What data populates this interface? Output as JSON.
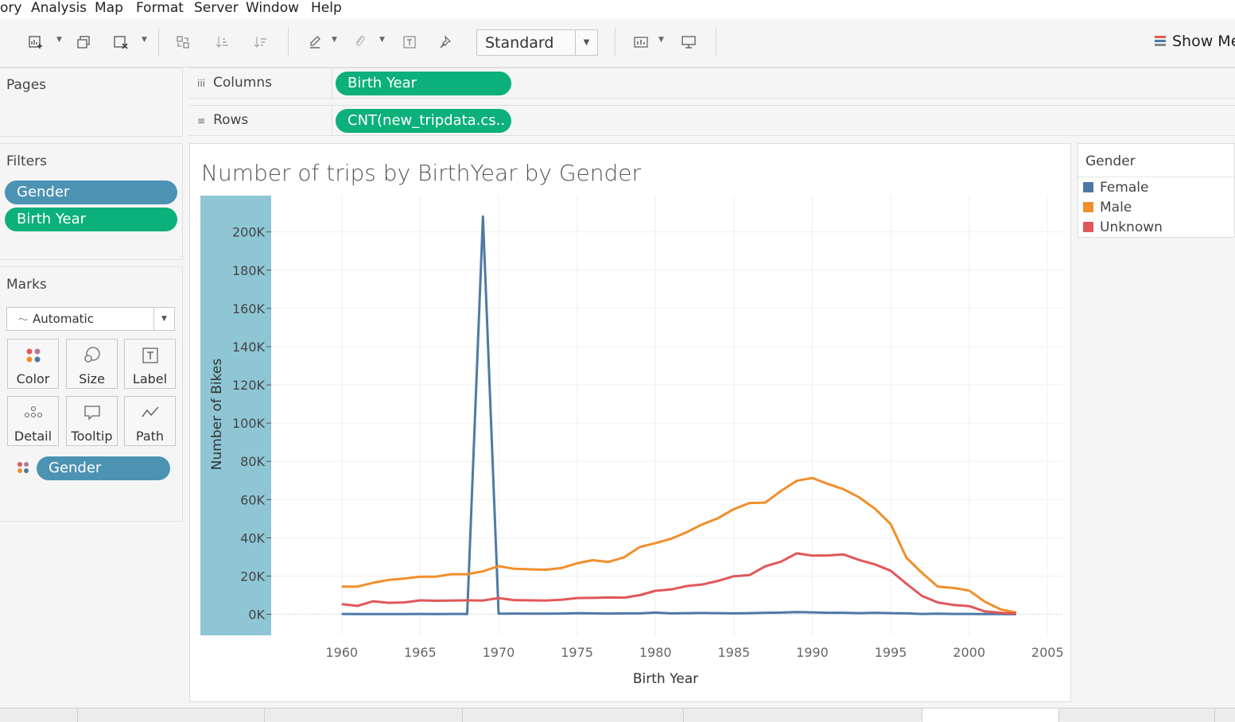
{
  "menu": [
    "ory",
    "Analysis",
    "Map",
    "Format",
    "Server",
    "Window",
    "Help"
  ],
  "toolbar": {
    "fit_select": "Standard",
    "show_me": "Show Me"
  },
  "pages_panel": {
    "title": "Pages"
  },
  "filters_panel": {
    "title": "Filters",
    "pills": [
      "Gender",
      "Birth Year"
    ]
  },
  "marks_panel": {
    "title": "Marks",
    "mark_type": "Automatic",
    "cards": [
      "Color",
      "Size",
      "Label",
      "Detail",
      "Tooltip",
      "Path"
    ],
    "pill": "Gender"
  },
  "shelves": {
    "columns_label": "Columns",
    "columns_pill": "Birth Year",
    "rows_label": "Rows",
    "rows_pill": "CNT(new_tripdata.cs.."
  },
  "colors": {
    "Female": "#4e79a7",
    "Male": "#f28e2b",
    "Unknown": "#e15759",
    "axis_band": "#8ec6d5",
    "pill_blue": "#4c93b3",
    "pill_green": "#0bb07b"
  },
  "legend": {
    "title": "Gender",
    "items": [
      "Female",
      "Male",
      "Unknown"
    ]
  },
  "chart_data": {
    "type": "line",
    "title": "Number of trips by BirthYear by Gender",
    "xlabel": "Birth Year",
    "ylabel": "Number of Bikes",
    "xlim": [
      1955.5,
      2006
    ],
    "ylim": [
      -11000,
      219000
    ],
    "x_ticks": [
      1960,
      1965,
      1970,
      1975,
      1980,
      1985,
      1990,
      1995,
      2000,
      2005
    ],
    "y_ticks": [
      0,
      20000,
      40000,
      60000,
      80000,
      100000,
      120000,
      140000,
      160000,
      180000,
      200000
    ],
    "y_tick_labels": [
      "0K",
      "20K",
      "40K",
      "60K",
      "80K",
      "100K",
      "120K",
      "140K",
      "160K",
      "180K",
      "200K"
    ],
    "grid": true,
    "legend_position": "right",
    "x": [
      1960,
      1961,
      1962,
      1963,
      1964,
      1965,
      1966,
      1967,
      1968,
      1969,
      1970,
      1971,
      1972,
      1973,
      1974,
      1975,
      1976,
      1977,
      1978,
      1979,
      1980,
      1981,
      1982,
      1983,
      1984,
      1985,
      1986,
      1987,
      1988,
      1989,
      1990,
      1991,
      1992,
      1993,
      1994,
      1995,
      1996,
      1997,
      1998,
      1999,
      2000,
      2001,
      2002,
      2003
    ],
    "series": [
      {
        "name": "Female",
        "values": [
          200,
          100,
          150,
          100,
          100,
          200,
          150,
          200,
          200,
          208000,
          300,
          400,
          300,
          300,
          400,
          600,
          500,
          400,
          500,
          500,
          900,
          500,
          600,
          700,
          600,
          500,
          600,
          800,
          900,
          1200,
          1000,
          800,
          800,
          600,
          800,
          600,
          500,
          200,
          300,
          200,
          200,
          100,
          100,
          50
        ]
      },
      {
        "name": "Male",
        "values": [
          14500,
          14500,
          16500,
          18000,
          18700,
          19700,
          19700,
          21000,
          21000,
          22500,
          25200,
          23800,
          23500,
          23300,
          24200,
          26700,
          28300,
          27400,
          29800,
          35200,
          37200,
          39500,
          43000,
          47100,
          50300,
          55000,
          58200,
          58400,
          64500,
          69800,
          71300,
          68200,
          65400,
          61100,
          55200,
          47200,
          29600,
          21600,
          14500,
          13800,
          12400,
          6600,
          2600,
          900
        ]
      },
      {
        "name": "Unknown",
        "values": [
          5300,
          4400,
          6800,
          6000,
          6200,
          7300,
          7100,
          7200,
          7300,
          7200,
          8500,
          7400,
          7300,
          7200,
          7600,
          8500,
          8600,
          8800,
          8700,
          10000,
          12300,
          13000,
          14800,
          15600,
          17500,
          19900,
          20500,
          25100,
          27500,
          31900,
          30700,
          30800,
          31300,
          28400,
          26100,
          22800,
          16000,
          9600,
          6200,
          4900,
          4300,
          1500,
          800,
          300
        ]
      }
    ]
  }
}
